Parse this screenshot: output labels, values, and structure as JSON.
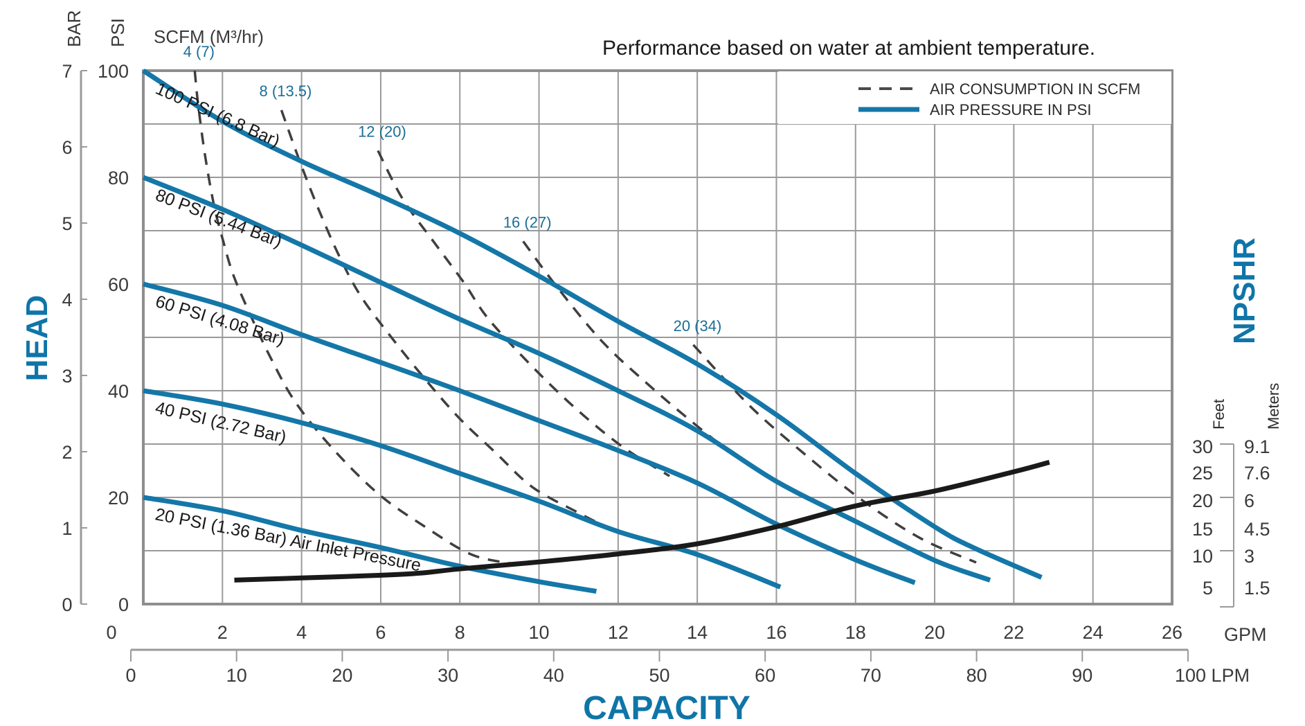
{
  "chart_data": {
    "type": "line",
    "title": "Performance based on water at ambient temperature.",
    "xlabel": "CAPACITY",
    "ylabel": "HEAD",
    "y2label": "NPSHR",
    "x_unit": "GPM",
    "x2_unit": "LPM",
    "xlim": [
      0,
      26
    ],
    "ylim": [
      0,
      100
    ],
    "grid": true,
    "legend_position": "top-right",
    "x_ticks": [
      "0",
      "2",
      "4",
      "6",
      "8",
      "10",
      "12",
      "14",
      "16",
      "18",
      "20",
      "22",
      "24",
      "26"
    ],
    "x_tick_values": [
      0,
      2,
      4,
      6,
      8,
      10,
      12,
      14,
      16,
      18,
      20,
      22,
      24,
      26
    ],
    "lpm_ticks": [
      "0",
      "10",
      "20",
      "30",
      "40",
      "50",
      "60",
      "70",
      "80",
      "90",
      "100"
    ],
    "lpm_tick_values": [
      0,
      10,
      20,
      30,
      40,
      50,
      60,
      70,
      80,
      90,
      100
    ],
    "lpm_last_label": "100 LPM",
    "psi_axis_title": "PSI",
    "psi_ticks": [
      "0",
      "20",
      "40",
      "60",
      "80",
      "100"
    ],
    "psi_tick_values": [
      0,
      20,
      40,
      60,
      80,
      100
    ],
    "bar_axis_title": "BAR",
    "bar_ticks": [
      "0",
      "1",
      "2",
      "3",
      "4",
      "5",
      "6",
      "7"
    ],
    "bar_tick_values": [
      0,
      1,
      2,
      3,
      4,
      5,
      6,
      7
    ],
    "scfm_axis_title": "SCFM (M³/hr)",
    "npshr_feet_title": "Feet",
    "npshr_meters_title": "Meters",
    "npshr_feet_ticks": [
      "30",
      "25",
      "20",
      "15",
      "10",
      "5"
    ],
    "npshr_feet_values": [
      30,
      25,
      20,
      15,
      10,
      5
    ],
    "npshr_meter_ticks": [
      "9.1",
      "7.6",
      "6",
      "4.5",
      "3",
      "1.5"
    ],
    "legend": [
      {
        "label": "AIR CONSUMPTION IN SCFM",
        "style": "dashed",
        "color": "#4a4a4a"
      },
      {
        "label": "AIR PRESSURE IN PSI",
        "style": "solid",
        "color": "#1477a8"
      }
    ],
    "colors": {
      "pressure": "#1477a8",
      "consumption": "#3f3f3f",
      "npshr": "#1a1a1a",
      "grid": "#9a9a9a",
      "accent": "#0f75a8"
    },
    "series": [
      {
        "name": "100 PSI (6.8 Bar)",
        "kind": "air-pressure",
        "points": [
          [
            0,
            100
          ],
          [
            2,
            90.5
          ],
          [
            4,
            83
          ],
          [
            6,
            76.5
          ],
          [
            8,
            69.5
          ],
          [
            10,
            61.5
          ],
          [
            12,
            53
          ],
          [
            14,
            45
          ],
          [
            16,
            35.5
          ],
          [
            18,
            24.5
          ],
          [
            20,
            14.5
          ],
          [
            21,
            10.5
          ],
          [
            22.7,
            5
          ]
        ]
      },
      {
        "name": "80 PSI (5.44 Bar)",
        "kind": "air-pressure",
        "points": [
          [
            0,
            80
          ],
          [
            2,
            74
          ],
          [
            4,
            67.3
          ],
          [
            6,
            60.3
          ],
          [
            8,
            53.4
          ],
          [
            10,
            47
          ],
          [
            12,
            40
          ],
          [
            14,
            32.5
          ],
          [
            16,
            23
          ],
          [
            18,
            15.5
          ],
          [
            20,
            8.2
          ],
          [
            21.4,
            4.5
          ]
        ]
      },
      {
        "name": "60 PSI (4.08 Bar)",
        "kind": "air-pressure",
        "points": [
          [
            0,
            60
          ],
          [
            2,
            56
          ],
          [
            4,
            50.5
          ],
          [
            6,
            45.3
          ],
          [
            8,
            40
          ],
          [
            10,
            34.4
          ],
          [
            12,
            28.8
          ],
          [
            14,
            22.7
          ],
          [
            16,
            15
          ],
          [
            18,
            8.3
          ],
          [
            19.5,
            4
          ]
        ]
      },
      {
        "name": "40 PSI (2.72 Bar)",
        "kind": "air-pressure",
        "points": [
          [
            0,
            40
          ],
          [
            2,
            37.5
          ],
          [
            4,
            34
          ],
          [
            6,
            29.7
          ],
          [
            8,
            24.5
          ],
          [
            10,
            19.3
          ],
          [
            12,
            13.6
          ],
          [
            14,
            9.3
          ],
          [
            16.1,
            3.2
          ]
        ]
      },
      {
        "name": "20 PSI (1.36 Bar) Air Inlet Pressure",
        "kind": "air-pressure",
        "points": [
          [
            0,
            20
          ],
          [
            2,
            17.5
          ],
          [
            4,
            13.8
          ],
          [
            6,
            10.6
          ],
          [
            8,
            7.1
          ],
          [
            10,
            4.2
          ],
          [
            11.45,
            2.4
          ]
        ]
      },
      {
        "name": "4 (7)",
        "kind": "air-consumption",
        "points": [
          [
            1.3,
            100
          ],
          [
            1.38,
            94
          ],
          [
            1.55,
            84.6
          ],
          [
            1.78,
            75
          ],
          [
            2.02,
            68
          ],
          [
            2.28,
            61.6
          ],
          [
            2.7,
            54.3
          ],
          [
            3.23,
            46
          ],
          [
            3.84,
            37.9
          ],
          [
            4.78,
            29.2
          ],
          [
            5.95,
            20.6
          ],
          [
            7.12,
            14.5
          ],
          [
            8.29,
            9.3
          ],
          [
            9.3,
            7.6
          ]
        ]
      },
      {
        "name": "8 (13.5)",
        "kind": "air-consumption",
        "points": [
          [
            3.49,
            92.6
          ],
          [
            3.96,
            82.9
          ],
          [
            4.42,
            74.2
          ],
          [
            4.96,
            65.1
          ],
          [
            5.5,
            57.7
          ],
          [
            6.27,
            50
          ],
          [
            7.12,
            42.2
          ],
          [
            7.98,
            34.9
          ],
          [
            8.9,
            28.4
          ],
          [
            9.84,
            21.9
          ],
          [
            11.0,
            17.1
          ],
          [
            11.5,
            15.2
          ]
        ]
      },
      {
        "name": "12 (20)",
        "kind": "air-consumption",
        "points": [
          [
            5.93,
            85
          ],
          [
            6.56,
            75.9
          ],
          [
            7.36,
            67.7
          ],
          [
            8.1,
            60.3
          ],
          [
            8.83,
            52.5
          ],
          [
            10.5,
            39.6
          ],
          [
            12.0,
            30.1
          ],
          [
            13.3,
            24
          ]
        ]
      },
      {
        "name": "16 (27)",
        "kind": "air-consumption",
        "points": [
          [
            9.6,
            68
          ],
          [
            10.45,
            59.5
          ],
          [
            11.6,
            49.2
          ],
          [
            12.8,
            40.9
          ],
          [
            13.96,
            33.6
          ],
          [
            15.0,
            27.5
          ]
        ]
      },
      {
        "name": "20 (34)",
        "kind": "air-consumption",
        "points": [
          [
            13.9,
            48.6
          ],
          [
            15.35,
            37
          ],
          [
            16.75,
            27.9
          ],
          [
            18.2,
            19.3
          ],
          [
            19.65,
            12.3
          ],
          [
            21.05,
            7.8
          ]
        ]
      },
      {
        "name": "NPSHR",
        "kind": "npshr",
        "unit": "feet",
        "points": [
          [
            2.3,
            4.5
          ],
          [
            4,
            4.9
          ],
          [
            6,
            5.4
          ],
          [
            7,
            5.8
          ],
          [
            8,
            6.6
          ],
          [
            10,
            7.9
          ],
          [
            12,
            9.4
          ],
          [
            14,
            11.3
          ],
          [
            16,
            14.5
          ],
          [
            18,
            18.4
          ],
          [
            20,
            21.2
          ],
          [
            22,
            24.8
          ],
          [
            22.9,
            26.6
          ]
        ]
      }
    ]
  }
}
